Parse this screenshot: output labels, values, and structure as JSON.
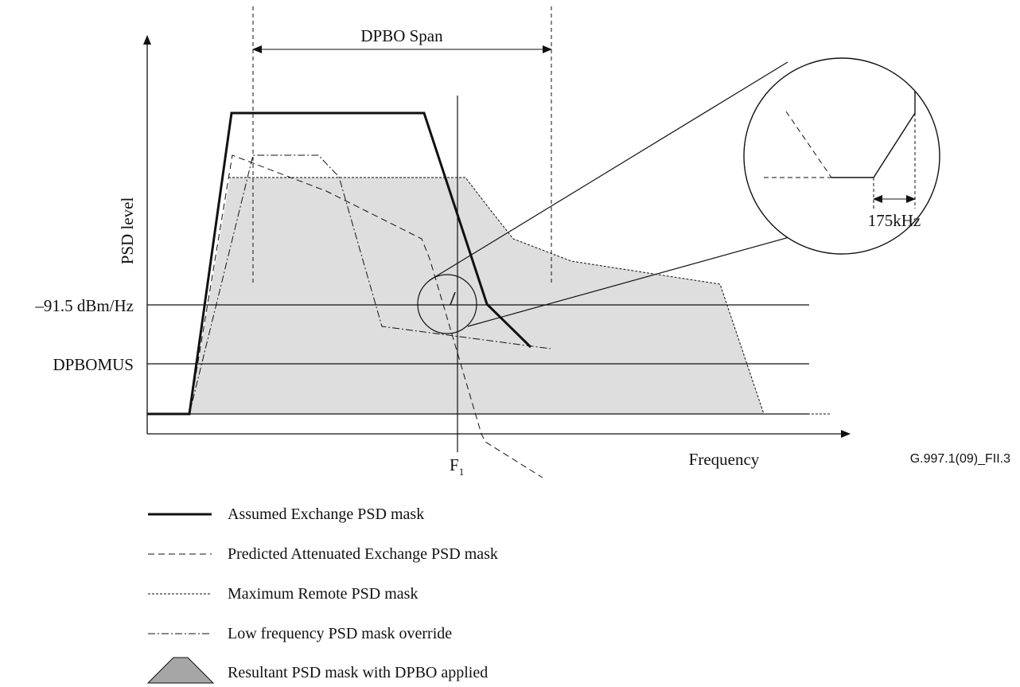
{
  "figure_id": "G.997.1(09)_FII.3",
  "axes": {
    "y_label": "PSD level",
    "x_label": "Frequency",
    "f1_label": "F",
    "f1_subscript": "1"
  },
  "levels": {
    "upper": "–91.5 dBm/Hz",
    "lower": "DPBOMUS"
  },
  "span_label": "DPBO Span",
  "zoom_label": "175kHz",
  "legend": [
    {
      "label": "Assumed Exchange PSD mask"
    },
    {
      "label": "Predicted Attenuated Exchange PSD mask"
    },
    {
      "label": "Maximum Remote PSD mask"
    },
    {
      "label": "Low frequency PSD mask override"
    },
    {
      "label": "Resultant PSD mask with DPBO applied"
    }
  ],
  "colors": {
    "line": "#111111",
    "fill": "#dedede",
    "legend_fill": "#a6a6a6"
  }
}
